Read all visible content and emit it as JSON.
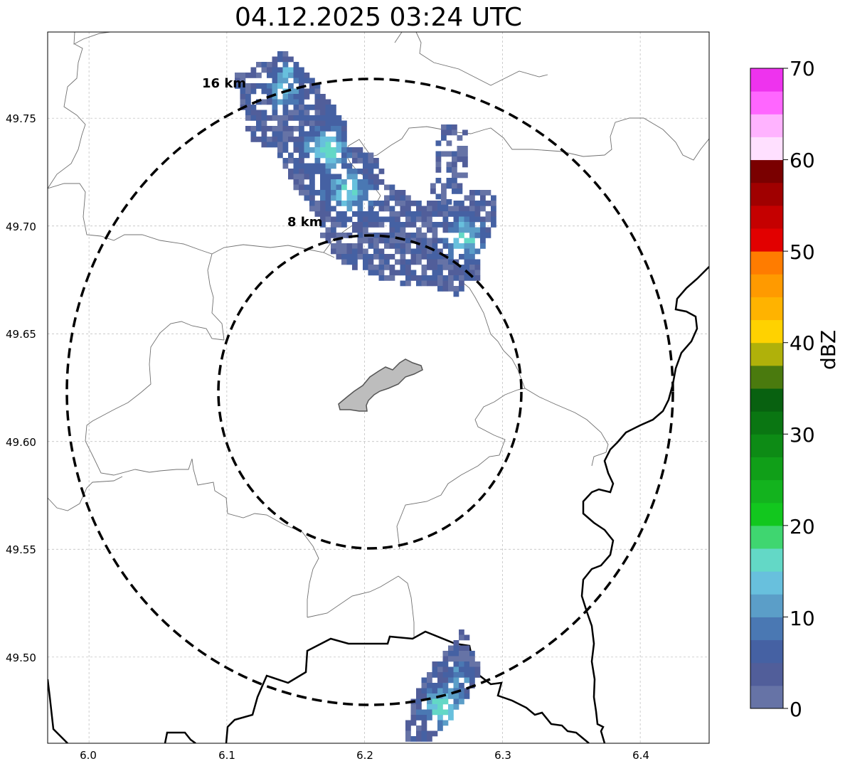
{
  "title": "04.12.2025 03:24 UTC",
  "map": {
    "lon_range": [
      5.97,
      6.45
    ],
    "lat_range": [
      49.46,
      49.79
    ],
    "x_ticks": [
      "6.0",
      "6.1",
      "6.2",
      "6.3",
      "6.4"
    ],
    "x_tick_values": [
      6.0,
      6.1,
      6.2,
      6.3,
      6.4
    ],
    "y_ticks": [
      "49.50",
      "49.55",
      "49.60",
      "49.65",
      "49.70",
      "49.75"
    ],
    "y_tick_values": [
      49.5,
      49.55,
      49.6,
      49.65,
      49.7,
      49.75
    ],
    "grid": true,
    "center": {
      "lon": 6.205,
      "lat": 49.623
    },
    "rings": [
      {
        "label": "8 km",
        "radius_km": 8
      },
      {
        "label": "16 km",
        "radius_km": 16
      }
    ]
  },
  "colorbar": {
    "label": "dBZ",
    "ticks": [
      "0",
      "10",
      "20",
      "30",
      "40",
      "50",
      "60",
      "70"
    ],
    "min": 0,
    "max": 70,
    "colors": [
      "#6673a6",
      "#515e9a",
      "#4561a3",
      "#4a78b3",
      "#5b9ec8",
      "#68c0dd",
      "#63d8c6",
      "#3fd670",
      "#12c71e",
      "#13b31e",
      "#109f18",
      "#0d8b15",
      "#0a7612",
      "#086110",
      "#4a7a0e",
      "#b0b10a",
      "#ffd200",
      "#ffb300",
      "#ff9a00",
      "#ff7c00",
      "#e20000",
      "#c50000",
      "#a00000",
      "#7a0000",
      "#ffe0ff",
      "#ffb3ff",
      "#ff66ff",
      "#ee33ee"
    ]
  }
}
